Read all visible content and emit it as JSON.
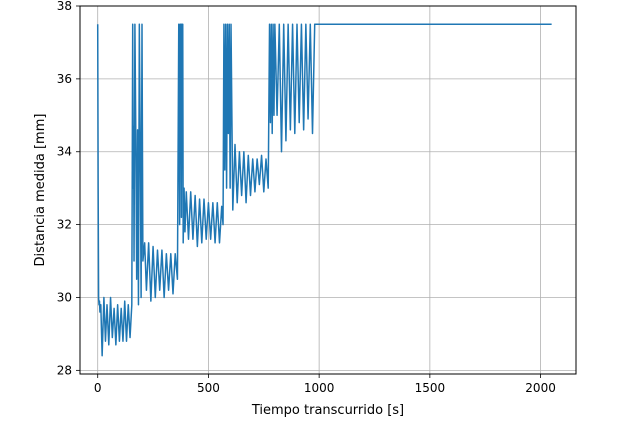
{
  "chart_data": {
    "type": "line",
    "title": "",
    "xlabel": "Tiempo transcurrido [s]",
    "ylabel": "Distancia medida [mm]",
    "xlim": [
      -80,
      2160
    ],
    "ylim": [
      27.9,
      38.0
    ],
    "xticks": [
      0,
      500,
      1000,
      1500,
      2000
    ],
    "yticks": [
      28,
      30,
      32,
      34,
      36,
      38
    ],
    "grid": true,
    "line_color": "#1f77b4",
    "series": [
      {
        "x": [
          0,
          2,
          4,
          6,
          8,
          10,
          14,
          20,
          28,
          35,
          42,
          50,
          58,
          66,
          74,
          82,
          90,
          98,
          106,
          114,
          122,
          130,
          138,
          146,
          154,
          158,
          160,
          162,
          164,
          168,
          172,
          176,
          180,
          184,
          188,
          192,
          196,
          200,
          204,
          212,
          220,
          230,
          240,
          250,
          260,
          270,
          280,
          290,
          300,
          310,
          320,
          330,
          340,
          350,
          360,
          366,
          370,
          372,
          374,
          376,
          378,
          380,
          382,
          384,
          386,
          390,
          394,
          400,
          410,
          420,
          430,
          440,
          450,
          460,
          470,
          480,
          490,
          500,
          510,
          520,
          530,
          540,
          550,
          560,
          566,
          570,
          574,
          578,
          582,
          586,
          590,
          594,
          598,
          602,
          610,
          620,
          630,
          640,
          650,
          660,
          670,
          680,
          690,
          700,
          710,
          720,
          730,
          740,
          750,
          760,
          770,
          776,
          780,
          784,
          788,
          792,
          796,
          800,
          810,
          820,
          830,
          840,
          850,
          860,
          870,
          880,
          890,
          900,
          910,
          920,
          930,
          940,
          950,
          960,
          970,
          980,
          990,
          1000,
          1200,
          1400,
          1600,
          1800,
          2000,
          2050
        ],
        "y": [
          37.5,
          33.0,
          30.0,
          29.8,
          29.9,
          29.6,
          29.8,
          28.4,
          30.0,
          28.8,
          29.8,
          28.7,
          30.0,
          28.9,
          29.7,
          28.7,
          29.8,
          28.8,
          29.7,
          28.8,
          29.9,
          28.8,
          29.8,
          28.9,
          29.8,
          37.5,
          33.0,
          34.7,
          31.0,
          37.5,
          34.5,
          30.5,
          34.6,
          29.8,
          37.5,
          34.2,
          30.0,
          37.5,
          31.0,
          31.5,
          30.2,
          31.5,
          29.9,
          31.4,
          30.0,
          31.3,
          30.2,
          31.3,
          30.0,
          31.2,
          30.2,
          31.2,
          30.1,
          31.2,
          30.5,
          37.5,
          32.0,
          37.5,
          34.7,
          37.5,
          32.2,
          37.5,
          35.0,
          37.5,
          31.5,
          33.0,
          31.8,
          32.9,
          31.6,
          32.9,
          31.6,
          32.8,
          31.4,
          32.7,
          31.5,
          32.7,
          31.6,
          32.6,
          31.6,
          32.6,
          31.5,
          32.6,
          31.5,
          32.5,
          32.0,
          37.5,
          33.5,
          37.5,
          33.0,
          37.5,
          34.5,
          37.5,
          33.0,
          37.5,
          32.4,
          34.2,
          32.6,
          34.0,
          32.8,
          34.0,
          32.6,
          33.9,
          32.8,
          33.8,
          32.9,
          33.8,
          33.1,
          33.9,
          32.9,
          33.8,
          33.0,
          37.5,
          34.8,
          37.5,
          34.5,
          37.5,
          35.0,
          37.5,
          35.0,
          37.5,
          34.0,
          37.5,
          34.3,
          37.5,
          34.6,
          37.5,
          34.5,
          37.5,
          34.8,
          37.5,
          34.6,
          37.5,
          34.9,
          37.5,
          34.5,
          37.5,
          37.5,
          37.5,
          37.5,
          37.5,
          37.5,
          37.5,
          37.5,
          37.5
        ]
      }
    ]
  }
}
